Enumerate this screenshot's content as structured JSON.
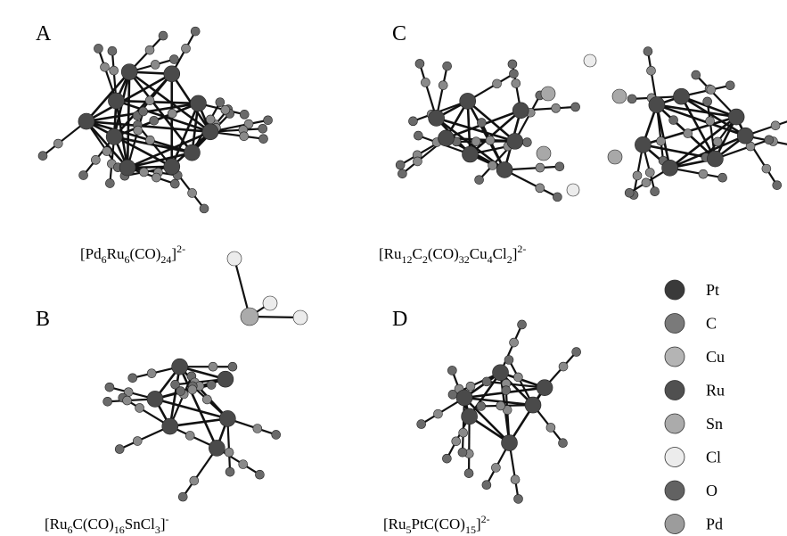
{
  "panels": [
    {
      "label": "A",
      "formula": [
        {
          "text": "[Pd"
        },
        {
          "text": "6",
          "sub": true
        },
        {
          "text": "Ru"
        },
        {
          "text": "6",
          "sub": true
        },
        {
          "text": "(CO)"
        },
        {
          "text": "24",
          "sub": true
        },
        {
          "text": "]"
        },
        {
          "text": "2-",
          "sup": true
        }
      ]
    },
    {
      "label": "C",
      "formula": [
        {
          "text": "[Ru"
        },
        {
          "text": "12",
          "sub": true
        },
        {
          "text": "C"
        },
        {
          "text": "2",
          "sub": true
        },
        {
          "text": "(CO)"
        },
        {
          "text": "32",
          "sub": true
        },
        {
          "text": "Cu"
        },
        {
          "text": "4",
          "sub": true
        },
        {
          "text": "Cl"
        },
        {
          "text": "2",
          "sub": true
        },
        {
          "text": "]"
        },
        {
          "text": "2-",
          "sup": true
        }
      ]
    },
    {
      "label": "B",
      "formula": [
        {
          "text": "[Ru"
        },
        {
          "text": "6",
          "sub": true
        },
        {
          "text": "C(CO)"
        },
        {
          "text": "16",
          "sub": true
        },
        {
          "text": "SnCl"
        },
        {
          "text": "3",
          "sub": true
        },
        {
          "text": "]"
        },
        {
          "text": "-",
          "sup": true
        }
      ]
    },
    {
      "label": "D",
      "formula": [
        {
          "text": "[Ru"
        },
        {
          "text": "5",
          "sub": true
        },
        {
          "text": "PtC(CO)"
        },
        {
          "text": "15",
          "sub": true
        },
        {
          "text": "]"
        },
        {
          "text": "2-",
          "sup": true
        }
      ]
    }
  ],
  "legend": [
    {
      "name": "Pt",
      "color": "#3a3a3a"
    },
    {
      "name": "C",
      "color": "#7a7a7a"
    },
    {
      "name": "Cu",
      "color": "#b4b4b4"
    },
    {
      "name": "Ru",
      "color": "#505050"
    },
    {
      "name": "Sn",
      "color": "#ababab"
    },
    {
      "name": "Cl",
      "color": "#ececec"
    },
    {
      "name": "O",
      "color": "#626262"
    },
    {
      "name": "Pd",
      "color": "#9c9c9c"
    }
  ]
}
